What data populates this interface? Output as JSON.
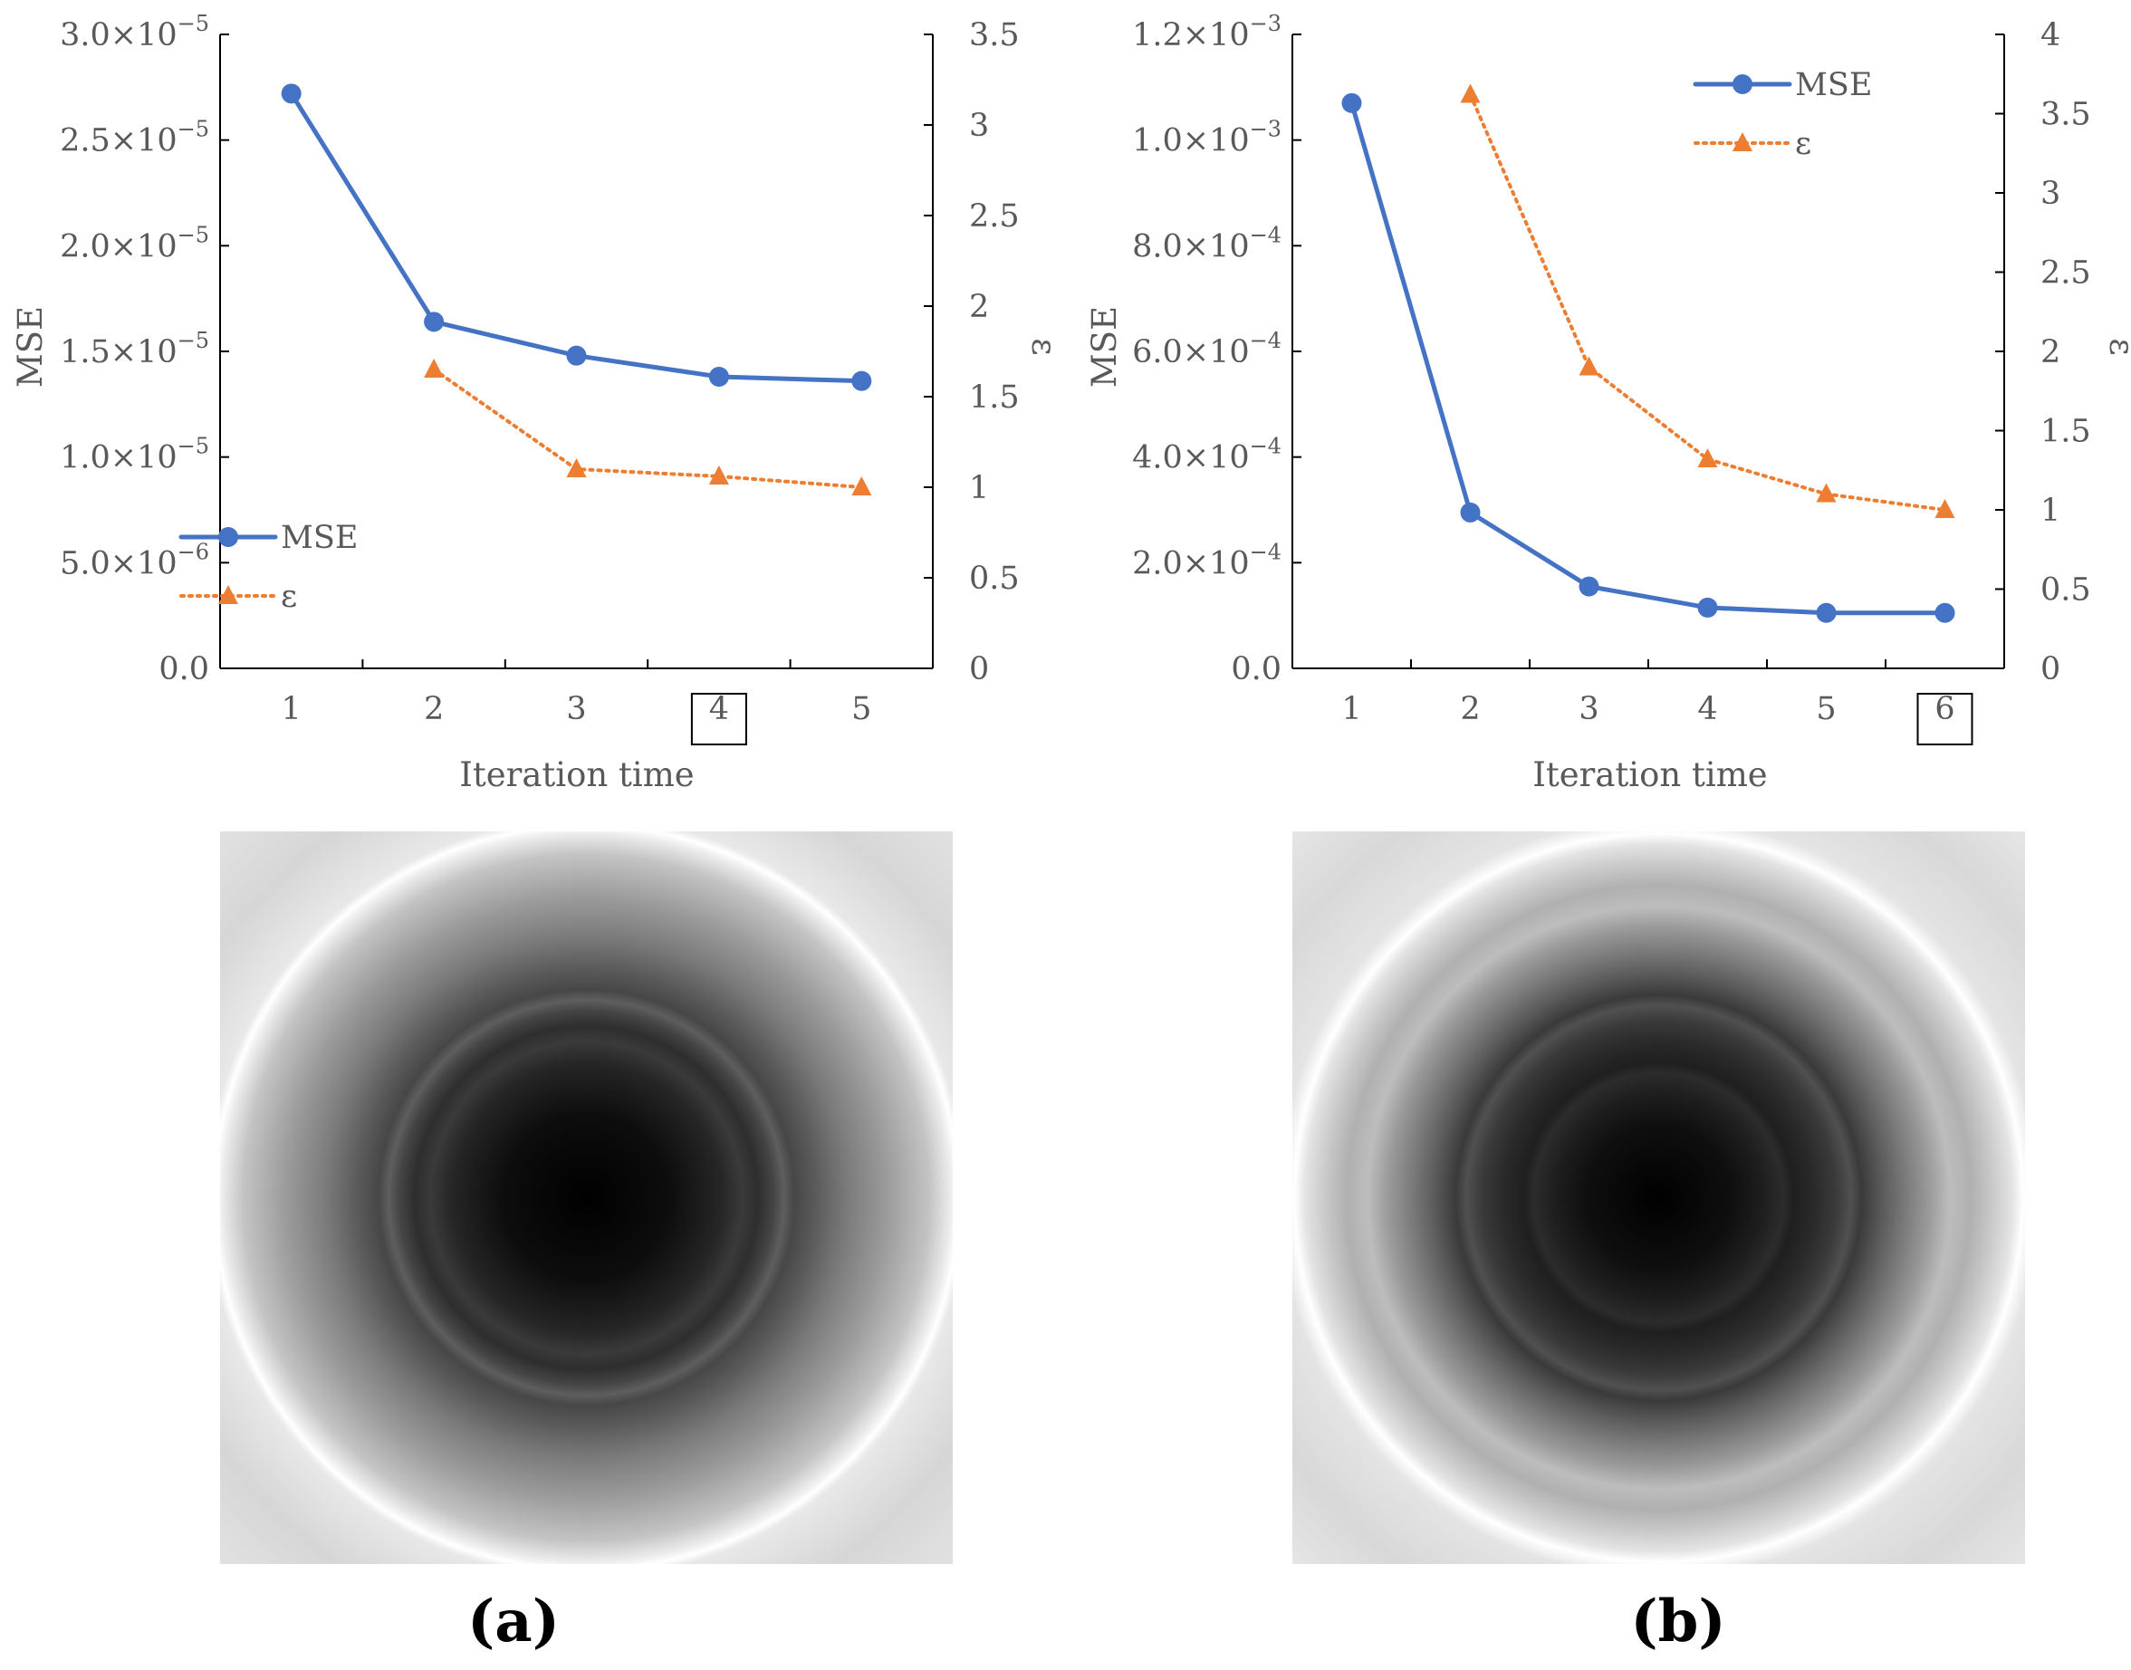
{
  "colors": {
    "mse": "#4472C4",
    "epsilon": "#ED7D31",
    "axis": "#000000",
    "text": "#595959"
  },
  "chart_data": [
    {
      "panel": "a",
      "type": "line",
      "panel_label": "(a)",
      "xlabel": "Iteration time",
      "ylabel": "MSE",
      "y2label": "ε",
      "x": [
        1,
        2,
        3,
        4,
        5
      ],
      "x_tick_labels": [
        "1",
        "2",
        "3",
        "4",
        "5"
      ],
      "highlighted_x_tick": "4",
      "ylim": [
        0,
        3e-05
      ],
      "y_ticks": [
        0,
        5e-06,
        1e-05,
        1.5e-05,
        2e-05,
        2.5e-05,
        3e-05
      ],
      "y_tick_labels": [
        {
          "mant": "0.0",
          "exp": ""
        },
        {
          "mant": "5.0",
          "exp": "−6"
        },
        {
          "mant": "1.0",
          "exp": "−5"
        },
        {
          "mant": "1.5",
          "exp": "−5"
        },
        {
          "mant": "2.0",
          "exp": "−5"
        },
        {
          "mant": "2.5",
          "exp": "−5"
        },
        {
          "mant": "3.0",
          "exp": "−5"
        }
      ],
      "y2lim": [
        0,
        3.5
      ],
      "y2_ticks": [
        0,
        0.5,
        1,
        1.5,
        2,
        2.5,
        3,
        3.5
      ],
      "y2_tick_labels": [
        "0",
        "0.5",
        "1",
        "1.5",
        "2",
        "2.5",
        "3",
        "3.5"
      ],
      "series": [
        {
          "name": "MSE",
          "axis": "left",
          "x": [
            1,
            2,
            3,
            4,
            5
          ],
          "values": [
            2.72e-05,
            1.64e-05,
            1.48e-05,
            1.38e-05,
            1.36e-05
          ]
        },
        {
          "name": "ε",
          "axis": "right",
          "x": [
            2,
            3,
            4,
            5
          ],
          "values": [
            1.65,
            1.1,
            1.06,
            1.0
          ]
        }
      ],
      "legend_position": "bottom-left"
    },
    {
      "panel": "b",
      "type": "line",
      "panel_label": "(b)",
      "xlabel": "Iteration time",
      "ylabel": "MSE",
      "y2label": "ε",
      "x": [
        1,
        2,
        3,
        4,
        5,
        6
      ],
      "x_tick_labels": [
        "1",
        "2",
        "3",
        "4",
        "5",
        "6"
      ],
      "highlighted_x_tick": "6",
      "ylim": [
        0,
        0.0012
      ],
      "y_ticks": [
        0,
        0.0002,
        0.0004,
        0.0006,
        0.0008,
        0.001,
        0.0012
      ],
      "y_tick_labels": [
        {
          "mant": "0.0",
          "exp": ""
        },
        {
          "mant": "2.0",
          "exp": "−4"
        },
        {
          "mant": "4.0",
          "exp": "−4"
        },
        {
          "mant": "6.0",
          "exp": "−4"
        },
        {
          "mant": "8.0",
          "exp": "−4"
        },
        {
          "mant": "1.0",
          "exp": "−3"
        },
        {
          "mant": "1.2",
          "exp": "−3"
        }
      ],
      "y2lim": [
        0,
        4
      ],
      "y2_ticks": [
        0,
        0.5,
        1,
        1.5,
        2,
        2.5,
        3,
        3.5,
        4
      ],
      "y2_tick_labels": [
        "0",
        "0.5",
        "1",
        "1.5",
        "2",
        "2.5",
        "3",
        "3.5",
        "4"
      ],
      "series": [
        {
          "name": "MSE",
          "axis": "left",
          "x": [
            1,
            2,
            3,
            4,
            5,
            6
          ],
          "values": [
            0.00107,
            0.000295,
            0.000155,
            0.000115,
            0.000105,
            0.000105
          ]
        },
        {
          "name": "ε",
          "axis": "right",
          "x": [
            2,
            3,
            4,
            5,
            6
          ],
          "values": [
            3.62,
            1.9,
            1.32,
            1.1,
            1.0
          ]
        }
      ],
      "legend_position": "top-right"
    }
  ],
  "images": [
    {
      "panel": "a",
      "name": "phase-map-a"
    },
    {
      "panel": "b",
      "name": "phase-map-b"
    }
  ]
}
